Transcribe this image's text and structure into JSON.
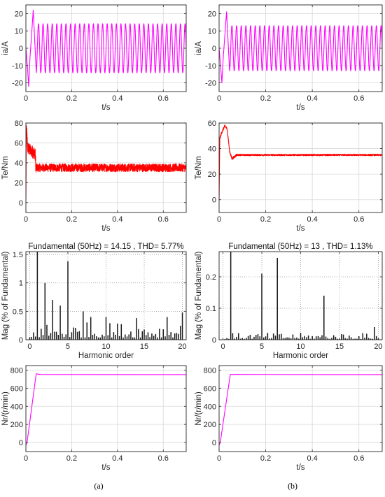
{
  "chart_data": [
    {
      "id": "a1",
      "type": "line",
      "xlabel": "t/s",
      "ylabel": "ia/A",
      "xlim": [
        0,
        0.7
      ],
      "ylim": [
        -25,
        25
      ],
      "xticks": [
        0,
        0.2,
        0.4,
        0.6
      ],
      "xtick_labels": [
        "0",
        "0.2",
        "0.4",
        "0.6"
      ],
      "yticks": [
        -20,
        -10,
        0,
        10,
        20
      ],
      "ytick_labels": [
        "-20",
        "-10",
        "0",
        "10",
        "20"
      ],
      "grid": true,
      "color": "#ff00ff",
      "signal": {
        "kind": "ac_current",
        "freq_hz": 50,
        "steady_amplitude": 14.15,
        "startup_points": [
          [
            0,
            0
          ],
          [
            0.0075,
            -12
          ],
          [
            0.012,
            -22
          ],
          [
            0.018,
            -5
          ],
          [
            0.025,
            8
          ],
          [
            0.032,
            22
          ],
          [
            0.045,
            -13
          ]
        ]
      }
    },
    {
      "id": "b1",
      "type": "line",
      "xlabel": "t/s",
      "ylabel": "ia/A",
      "xlim": [
        0,
        0.7
      ],
      "ylim": [
        -25,
        25
      ],
      "xticks": [
        0,
        0.2,
        0.4,
        0.6
      ],
      "xtick_labels": [
        "0",
        "0.2",
        "0.4",
        "0.6"
      ],
      "yticks": [
        -20,
        -10,
        0,
        10,
        20
      ],
      "ytick_labels": [
        "-20",
        "-10",
        "0",
        "10",
        "20"
      ],
      "grid": true,
      "color": "#ff00ff",
      "signal": {
        "kind": "ac_current",
        "freq_hz": 50,
        "steady_amplitude": 13,
        "startup_points": [
          [
            0,
            0
          ],
          [
            0.0075,
            -12
          ],
          [
            0.012,
            -20
          ],
          [
            0.018,
            -5
          ],
          [
            0.025,
            8
          ],
          [
            0.032,
            21
          ],
          [
            0.045,
            -13
          ]
        ]
      }
    },
    {
      "id": "a2",
      "type": "line",
      "xlabel": "t/s",
      "ylabel": "Te/Nm",
      "xlim": [
        0,
        0.7
      ],
      "ylim": [
        -10,
        80
      ],
      "xticks": [
        0,
        0.2,
        0.4,
        0.6
      ],
      "xtick_labels": [
        "0",
        "0.2",
        "0.4",
        "0.6"
      ],
      "yticks": [
        0,
        20,
        40,
        60,
        80
      ],
      "ytick_labels": [
        "0",
        "20",
        "40",
        "60",
        "80"
      ],
      "grid": true,
      "color": "#ff0000",
      "signal": {
        "kind": "torque",
        "startup_points": [
          [
            0,
            0
          ],
          [
            0.002,
            75
          ],
          [
            0.008,
            55
          ],
          [
            0.02,
            52
          ],
          [
            0.04,
            50
          ],
          [
            0.045,
            30
          ]
        ],
        "steady_value": 35,
        "ripple": 4
      }
    },
    {
      "id": "b2",
      "type": "line",
      "xlabel": "t/s",
      "ylabel": "Te/Nm",
      "xlim": [
        0,
        0.7
      ],
      "ylim": [
        -10,
        60
      ],
      "xticks": [
        0,
        0.2,
        0.4,
        0.6
      ],
      "xtick_labels": [
        "0",
        "0.2",
        "0.4",
        "0.6"
      ],
      "yticks": [
        0,
        20,
        40,
        60
      ],
      "ytick_labels": [
        "0",
        "20",
        "40",
        "60"
      ],
      "grid": true,
      "color": "#ff0000",
      "signal": {
        "kind": "torque",
        "startup_points": [
          [
            0,
            0
          ],
          [
            0.003,
            48
          ],
          [
            0.01,
            52
          ],
          [
            0.025,
            58
          ],
          [
            0.035,
            55
          ],
          [
            0.045,
            38
          ],
          [
            0.055,
            32
          ],
          [
            0.075,
            35
          ]
        ],
        "steady_value": 35,
        "ripple": 0.6
      }
    },
    {
      "id": "a3",
      "type": "bar",
      "title": "Fundamental (50Hz) = 14.15 , THD= 5.77%",
      "xlabel": "Harmonic order",
      "ylabel": "Mag (% of Fundamental)",
      "xlim": [
        -0.5,
        20.5
      ],
      "ylim": [
        0,
        1.55
      ],
      "xticks": [
        0,
        5,
        10,
        15,
        20
      ],
      "xtick_labels": [
        "0",
        "5",
        "10",
        "15",
        "20"
      ],
      "yticks": [
        0,
        0.5,
        1,
        1.5
      ],
      "ytick_labels": [
        "0",
        "0.5",
        "1",
        "1.5"
      ],
      "grid": true,
      "color": "#000000",
      "peaks": [
        [
          1,
          1.55
        ],
        [
          2,
          1.0
        ],
        [
          3,
          0.7
        ],
        [
          4,
          0.6
        ],
        [
          5,
          1.38
        ],
        [
          7,
          0.5
        ],
        [
          8,
          0.4
        ],
        [
          10,
          0.4
        ],
        [
          14,
          0.38
        ],
        [
          18,
          0.4
        ],
        [
          20,
          0.48
        ]
      ],
      "noise_level": 0.26
    },
    {
      "id": "b3",
      "type": "bar",
      "title": "Fundamental (50Hz) = 13 , THD= 1.13%",
      "xlabel": "Harmonic order",
      "ylabel": "Mag (% of Fundamental)",
      "xlim": [
        -0.5,
        20.5
      ],
      "ylim": [
        0,
        0.28
      ],
      "xticks": [
        0,
        5,
        10,
        15,
        20
      ],
      "xtick_labels": [
        "0",
        "5",
        "10",
        "15",
        "20"
      ],
      "yticks": [
        0,
        0.1,
        0.2
      ],
      "ytick_labels": [
        "0",
        "0.1",
        "0.2"
      ],
      "grid": true,
      "color": "#000000",
      "peaks": [
        [
          1,
          0.28
        ],
        [
          5,
          0.21
        ],
        [
          7,
          0.26
        ],
        [
          13,
          0.14
        ],
        [
          19.5,
          0.04
        ]
      ],
      "noise_level": 0.018
    },
    {
      "id": "a4",
      "type": "line",
      "xlabel": "t/s",
      "ylabel": "Nr/(r/min)",
      "xlim": [
        0,
        0.7
      ],
      "ylim": [
        -100,
        850
      ],
      "xticks": [
        0,
        0.2,
        0.4,
        0.6
      ],
      "xtick_labels": [
        "0",
        "0.2",
        "0.4",
        "0.6"
      ],
      "yticks": [
        0,
        200,
        400,
        600,
        800
      ],
      "ytick_labels": [
        "0",
        "200",
        "400",
        "600",
        "800"
      ],
      "grid": true,
      "color": "#ff00ff",
      "points": [
        [
          0,
          -30
        ],
        [
          0.005,
          0
        ],
        [
          0.045,
          760
        ],
        [
          0.06,
          752
        ],
        [
          0.7,
          750
        ]
      ]
    },
    {
      "id": "b4",
      "type": "line",
      "xlabel": "t/s",
      "ylabel": "Nr/(r/min)",
      "xlim": [
        0,
        0.7
      ],
      "ylim": [
        -100,
        850
      ],
      "xticks": [
        0,
        0.2,
        0.4,
        0.6
      ],
      "xtick_labels": [
        "0",
        "0.2",
        "0.4",
        "0.6"
      ],
      "yticks": [
        0,
        200,
        400,
        600,
        800
      ],
      "ytick_labels": [
        "0",
        "200",
        "400",
        "600",
        "800"
      ],
      "grid": true,
      "color": "#ff00ff",
      "points": [
        [
          0,
          -30
        ],
        [
          0.005,
          0
        ],
        [
          0.048,
          752
        ],
        [
          0.7,
          750
        ]
      ]
    }
  ],
  "captions": {
    "a": "(a)",
    "b": "(b)"
  }
}
